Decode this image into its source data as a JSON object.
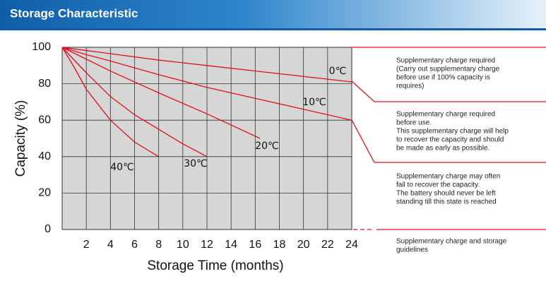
{
  "chart_data": {
    "type": "line",
    "title": "Storage Characteristic",
    "x_label": "Storage Time (months)",
    "y_label": "Capacity  (%)",
    "xlim": [
      0,
      24
    ],
    "ylim": [
      0,
      100
    ],
    "xticks": [
      2,
      4,
      6,
      8,
      10,
      12,
      14,
      16,
      18,
      20,
      22,
      24
    ],
    "yticks": [
      0,
      20,
      40,
      60,
      80,
      100
    ],
    "grid": true,
    "series": [
      {
        "name": "0℃",
        "color": "#e0101a",
        "x": [
          0,
          4,
          8,
          12,
          16,
          20,
          24
        ],
        "values": [
          100,
          96.5,
          93,
          90,
          87,
          84,
          81
        ]
      },
      {
        "name": "10℃",
        "color": "#e0101a",
        "x": [
          0,
          2,
          4,
          8,
          12,
          16,
          20,
          24
        ],
        "values": [
          100,
          96,
          92.5,
          85,
          78,
          72,
          66,
          60
        ]
      },
      {
        "name": "20℃",
        "color": "#e0101a",
        "x": [
          0,
          2,
          4,
          8,
          12,
          16.4
        ],
        "values": [
          100,
          93.5,
          87,
          75,
          63.5,
          50
        ]
      },
      {
        "name": "30℃",
        "color": "#e0101a",
        "x": [
          0,
          2,
          4,
          6,
          8,
          10,
          12
        ],
        "values": [
          100,
          86,
          73,
          63,
          55,
          47,
          40
        ]
      },
      {
        "name": "40℃",
        "color": "#e0101a",
        "x": [
          0,
          1,
          2,
          4,
          6,
          8
        ],
        "values": [
          100,
          89,
          77,
          60,
          48,
          40
        ]
      }
    ],
    "annotations": [
      {
        "lines": [
          "Supplementary charge required",
          "(Carry out supplementary charge",
          "before use if 100% capacity is",
          "requires)"
        ]
      },
      {
        "lines": [
          "Supplementary charge required",
          "before use.",
          "This supplementary charge will help",
          "to recover the capacity and should",
          "be made  as early as possible."
        ]
      },
      {
        "lines": [
          "Supplementary charge may often",
          "fail to recover the capacity.",
          "The battery should never be left",
          "standing till this state is reached"
        ]
      },
      {
        "lines": [
          "Supplementary charge and storage",
          "guidelines"
        ]
      }
    ]
  }
}
